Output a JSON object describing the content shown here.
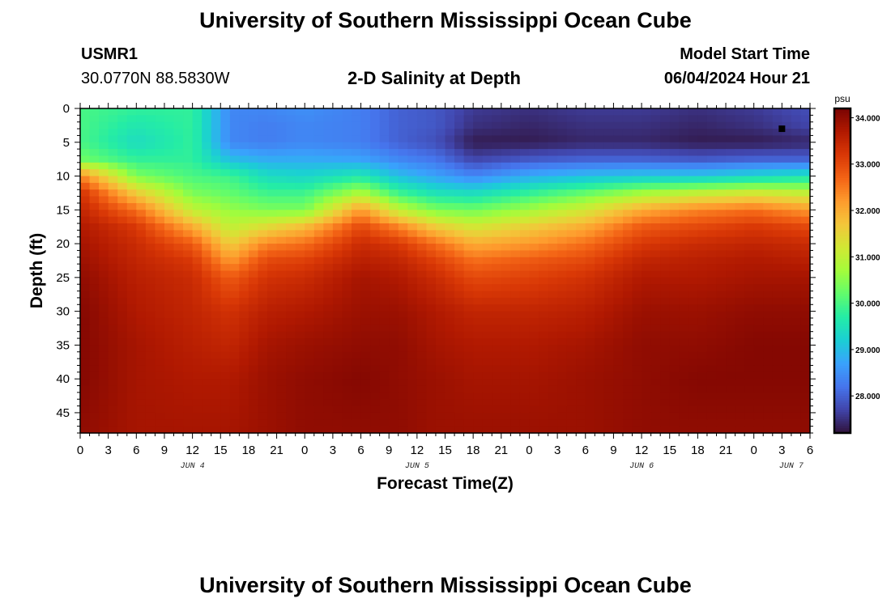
{
  "page": {
    "title": "University of Southern Mississippi Ocean Cube",
    "footer_title": "University of Southern Mississippi Ocean Cube",
    "station_id": "USMR1",
    "coordinates": "30.0770N  88.5830W",
    "subtitle": "2-D Salinity at Depth",
    "model_start_label": "Model Start Time",
    "model_start_value": "06/04/2024 Hour 21"
  },
  "chart_data": {
    "type": "heatmap",
    "title": "2-D Salinity at Depth",
    "xlabel": "Forecast Time(Z)",
    "ylabel": "Depth (ft)",
    "x_range_hours": [
      0,
      78
    ],
    "y_range_ft": [
      0,
      48
    ],
    "y_inverted": true,
    "x_ticks": [
      {
        "hour": 0,
        "label": "0"
      },
      {
        "hour": 3,
        "label": "3"
      },
      {
        "hour": 6,
        "label": "6"
      },
      {
        "hour": 9,
        "label": "9"
      },
      {
        "hour": 12,
        "label": "12"
      },
      {
        "hour": 15,
        "label": "15"
      },
      {
        "hour": 18,
        "label": "18"
      },
      {
        "hour": 21,
        "label": "21"
      },
      {
        "hour": 24,
        "label": "0"
      },
      {
        "hour": 27,
        "label": "3"
      },
      {
        "hour": 30,
        "label": "6"
      },
      {
        "hour": 33,
        "label": "9"
      },
      {
        "hour": 36,
        "label": "12"
      },
      {
        "hour": 39,
        "label": "15"
      },
      {
        "hour": 42,
        "label": "18"
      },
      {
        "hour": 45,
        "label": "21"
      },
      {
        "hour": 48,
        "label": "0"
      },
      {
        "hour": 51,
        "label": "3"
      },
      {
        "hour": 54,
        "label": "6"
      },
      {
        "hour": 57,
        "label": "9"
      },
      {
        "hour": 60,
        "label": "12"
      },
      {
        "hour": 63,
        "label": "15"
      },
      {
        "hour": 66,
        "label": "18"
      },
      {
        "hour": 69,
        "label": "21"
      },
      {
        "hour": 72,
        "label": "0"
      },
      {
        "hour": 75,
        "label": "3"
      },
      {
        "hour": 78,
        "label": "6"
      }
    ],
    "date_labels": [
      {
        "hour": 12,
        "label": "JUN 4"
      },
      {
        "hour": 36,
        "label": "JUN 5"
      },
      {
        "hour": 60,
        "label": "JUN 6"
      },
      {
        "hour": 76,
        "label": "JUN 7"
      }
    ],
    "y_ticks": [
      0,
      5,
      10,
      15,
      20,
      25,
      30,
      35,
      40,
      45
    ],
    "colorbar": {
      "unit": "psu",
      "range": [
        27.2,
        34.2
      ],
      "ticks": [
        "34.000",
        "33.000",
        "32.000",
        "31.000",
        "30.000",
        "29.000",
        "28.000"
      ],
      "tick_values": [
        34,
        33,
        32,
        31,
        30,
        29,
        28
      ],
      "colors": [
        "#30123b",
        "#4145ab",
        "#4675ed",
        "#39a2fc",
        "#1bcfd4",
        "#24eca6",
        "#61fc6c",
        "#a4fc3b",
        "#d1e834",
        "#f3c63a",
        "#fe9b2d",
        "#f36315",
        "#d93806",
        "#b11901",
        "#7a0402"
      ]
    },
    "marker": {
      "hour": 75,
      "depth_ft": 3
    },
    "depth_rows_ft": [
      0,
      2.5,
      5,
      7.5,
      10,
      12.5,
      15,
      17.5,
      20,
      22.5,
      25,
      30,
      35,
      40,
      48
    ],
    "time_cols_hours": [
      0,
      6,
      12,
      16,
      20,
      24,
      30,
      34,
      38,
      42,
      48,
      54,
      60,
      66,
      72,
      78
    ],
    "values": [
      [
        30.0,
        29.8,
        29.8,
        28.4,
        28.4,
        28.5,
        28.3,
        28.0,
        27.9,
        27.6,
        27.5,
        27.6,
        27.6,
        27.5,
        27.6,
        27.8
      ],
      [
        30.0,
        29.6,
        29.8,
        28.4,
        28.3,
        28.4,
        28.3,
        28.0,
        27.9,
        27.5,
        27.4,
        27.5,
        27.5,
        27.4,
        27.5,
        27.7
      ],
      [
        30.0,
        29.4,
        29.8,
        28.4,
        28.3,
        28.4,
        28.3,
        28.0,
        27.8,
        27.3,
        27.3,
        27.4,
        27.4,
        27.3,
        27.3,
        27.4
      ],
      [
        30.3,
        29.8,
        29.8,
        29.0,
        28.8,
        28.8,
        28.7,
        28.4,
        28.2,
        27.7,
        27.9,
        28.0,
        28.0,
        27.9,
        28.0,
        28.0
      ],
      [
        32.4,
        30.4,
        30.0,
        29.9,
        29.4,
        29.3,
        29.6,
        29.0,
        28.7,
        28.4,
        28.8,
        29.0,
        29.1,
        29.1,
        29.3,
        29.5
      ],
      [
        33.3,
        31.6,
        30.4,
        30.2,
        29.9,
        29.9,
        30.8,
        29.9,
        29.5,
        29.4,
        29.8,
        30.2,
        30.7,
        31.0,
        31.2,
        31.0
      ],
      [
        33.5,
        32.6,
        31.0,
        30.6,
        30.4,
        30.4,
        32.2,
        31.0,
        30.4,
        30.3,
        30.7,
        31.2,
        32.0,
        32.4,
        32.6,
        32.2
      ],
      [
        33.7,
        33.2,
        32.0,
        31.0,
        31.4,
        31.8,
        33.0,
        32.4,
        31.6,
        31.2,
        31.6,
        32.0,
        32.8,
        33.0,
        33.2,
        33.0
      ],
      [
        33.8,
        33.4,
        32.8,
        31.6,
        32.4,
        32.6,
        33.4,
        33.2,
        32.6,
        32.0,
        32.2,
        32.6,
        33.2,
        33.4,
        33.5,
        33.4
      ],
      [
        33.9,
        33.5,
        33.2,
        32.2,
        33.0,
        33.1,
        33.6,
        33.5,
        33.1,
        32.6,
        32.8,
        33.0,
        33.5,
        33.6,
        33.7,
        33.6
      ],
      [
        34.0,
        33.6,
        33.4,
        32.8,
        33.3,
        33.4,
        33.8,
        33.7,
        33.4,
        33.0,
        33.1,
        33.3,
        33.7,
        33.7,
        33.8,
        33.8
      ],
      [
        34.1,
        33.7,
        33.5,
        33.3,
        33.6,
        33.7,
        33.9,
        33.9,
        33.7,
        33.5,
        33.5,
        33.6,
        33.9,
        33.9,
        34.0,
        34.0
      ],
      [
        34.1,
        33.8,
        33.6,
        33.5,
        33.8,
        33.9,
        34.0,
        34.0,
        33.8,
        33.7,
        33.7,
        33.8,
        34.0,
        34.0,
        34.1,
        34.1
      ],
      [
        34.1,
        33.8,
        33.7,
        33.7,
        33.9,
        34.0,
        34.1,
        34.0,
        33.9,
        33.8,
        33.8,
        33.9,
        34.0,
        34.1,
        34.1,
        34.1
      ],
      [
        34.0,
        33.8,
        33.8,
        33.8,
        33.9,
        34.0,
        34.0,
        34.0,
        33.9,
        33.9,
        33.9,
        33.9,
        34.0,
        34.0,
        34.0,
        34.0
      ]
    ]
  }
}
